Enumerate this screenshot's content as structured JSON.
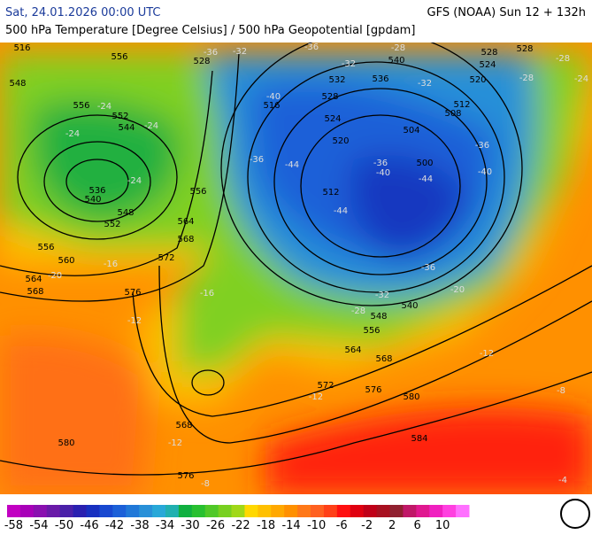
{
  "header": {
    "date": "Sat, 24.01.2026 00:00 UTC",
    "model": "GFS (NOAA) Sun 12 + 132h",
    "subtitle": "500 hPa Temperature [Degree Celsius] / 500 hPa Geopotential [gpdam]"
  },
  "map": {
    "geopotential_labels": [
      516,
      556,
      548,
      528,
      556,
      552,
      544,
      536,
      540,
      548,
      552,
      556,
      560,
      564,
      568,
      572,
      576,
      564,
      568,
      556,
      516,
      532,
      536,
      540,
      528,
      524,
      520,
      512,
      504,
      500,
      508,
      512,
      520,
      524,
      528,
      528,
      540,
      548,
      556,
      564,
      568,
      572,
      576,
      580,
      584,
      568,
      580,
      576
    ],
    "temperature_labels": [
      -36,
      -32,
      -36,
      -32,
      -28,
      -32,
      -28,
      -28,
      -24,
      -40,
      -36,
      -44,
      -36,
      -40,
      -44,
      -40,
      -36,
      -44,
      -36,
      -32,
      -28,
      -24,
      -24,
      -24,
      -24,
      -20,
      -16,
      -16,
      -12,
      -12,
      -8,
      -12,
      -12,
      -8,
      -4,
      -20
    ]
  },
  "colorbar": {
    "ticks": [
      -58,
      -54,
      -50,
      -46,
      -42,
      -38,
      -34,
      -30,
      -26,
      -22,
      -18,
      -14,
      -10,
      -6,
      -2,
      2,
      6,
      10
    ],
    "colors": [
      "#c200c2",
      "#a800b8",
      "#8a10b0",
      "#6a1aa8",
      "#4a20a8",
      "#2a20b0",
      "#1830c0",
      "#1848d0",
      "#1c60d8",
      "#2078d8",
      "#2890d8",
      "#28a8d8",
      "#20b0b0",
      "#10b040",
      "#28c030",
      "#50c828",
      "#78d020",
      "#a0d818",
      "#ffd800",
      "#ffc000",
      "#ffa800",
      "#ff9000",
      "#ff7818",
      "#ff6020",
      "#ff4018",
      "#ff1010",
      "#e00010",
      "#c00018",
      "#a81020",
      "#902030",
      "#c01868",
      "#e01890",
      "#f020c0",
      "#ff40e0",
      "#ff70ff"
    ]
  }
}
